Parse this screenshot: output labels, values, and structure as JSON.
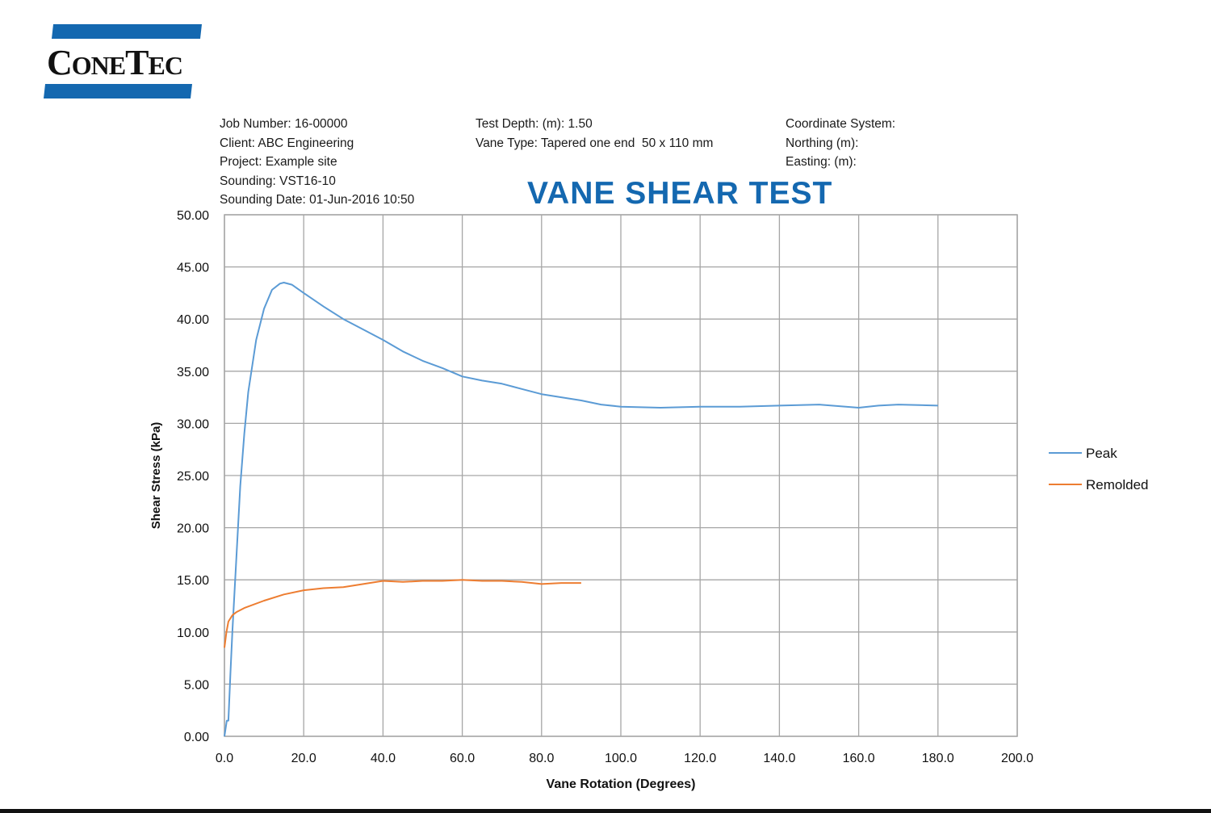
{
  "logo": {
    "text": "ConeTec",
    "color": "#1468b0"
  },
  "header": {
    "col1": [
      "Job Number: 16-00000",
      "Client: ABC Engineering",
      "Project: Example site",
      "Sounding: VST16-10",
      "Sounding Date: 01-Jun-2016 10:50"
    ],
    "col2": [
      "Test Depth: (m): 1.50",
      "Vane Type: Tapered one end  50 x 110 mm"
    ],
    "col3": [
      "Coordinate System:",
      "Northing (m):",
      "Easting: (m):"
    ]
  },
  "chart_data": {
    "type": "line",
    "title": "VANE SHEAR TEST",
    "xlabel": "Vane Rotation (Degrees)",
    "ylabel": "Shear Stress (kPa)",
    "xlim": [
      0,
      200
    ],
    "ylim": [
      0,
      50
    ],
    "x_ticks": [
      "0.0",
      "20.0",
      "40.0",
      "60.0",
      "80.0",
      "100.0",
      "120.0",
      "140.0",
      "160.0",
      "180.0",
      "200.0"
    ],
    "y_ticks": [
      "0.00",
      "5.00",
      "10.00",
      "15.00",
      "20.00",
      "25.00",
      "30.00",
      "35.00",
      "40.00",
      "45.00",
      "50.00"
    ],
    "grid": true,
    "legend": "right",
    "series": [
      {
        "name": "Peak",
        "color": "#5b9bd5",
        "x": [
          0,
          0.6,
          1,
          1.5,
          2,
          3,
          4,
          5,
          6,
          8,
          10,
          12,
          14,
          15,
          17,
          20,
          25,
          30,
          35,
          40,
          45,
          50,
          55,
          60,
          65,
          70,
          75,
          80,
          85,
          90,
          95,
          100,
          110,
          120,
          130,
          140,
          150,
          160,
          165,
          170,
          180
        ],
        "y": [
          0,
          1.5,
          1.5,
          6,
          10,
          17,
          24,
          29,
          33,
          38,
          41,
          42.8,
          43.4,
          43.5,
          43.3,
          42.5,
          41.2,
          40,
          39,
          38,
          36.9,
          36,
          35.3,
          34.5,
          34.1,
          33.8,
          33.3,
          32.8,
          32.5,
          32.2,
          31.8,
          31.6,
          31.5,
          31.6,
          31.6,
          31.7,
          31.8,
          31.5,
          31.7,
          31.8,
          31.7
        ]
      },
      {
        "name": "Remolded",
        "color": "#ed7d31",
        "x": [
          0,
          0.5,
          1,
          2,
          3,
          5,
          10,
          15,
          20,
          25,
          30,
          35,
          40,
          45,
          50,
          55,
          60,
          65,
          70,
          75,
          80,
          85,
          90
        ],
        "y": [
          8.5,
          10,
          11,
          11.6,
          11.9,
          12.3,
          13,
          13.6,
          14,
          14.2,
          14.3,
          14.6,
          14.9,
          14.8,
          14.9,
          14.9,
          15,
          14.9,
          14.9,
          14.8,
          14.6,
          14.7,
          14.7
        ]
      }
    ]
  }
}
